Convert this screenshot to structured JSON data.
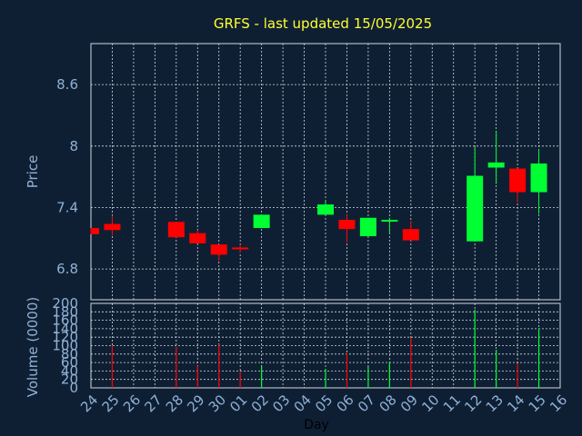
{
  "title": "GRFS - last updated 15/05/2025",
  "colors": {
    "background": "#0f1f33",
    "title": "#ffff33",
    "axis_text": "#8fb1d6",
    "grid": "#d0d8e0",
    "up": "#00ff33",
    "down": "#ff0000"
  },
  "chart_data": [
    {
      "type": "candlestick",
      "ylabel": "Price",
      "ylim": [
        6.5,
        9.0
      ],
      "yticks": [
        6.8,
        7.4,
        8,
        8.6
      ],
      "x_categories": [
        "24",
        "25",
        "26",
        "27",
        "28",
        "29",
        "30",
        "01",
        "02",
        "03",
        "04",
        "05",
        "06",
        "07",
        "08",
        "09",
        "10",
        "11",
        "12",
        "13",
        "14",
        "15",
        "16"
      ],
      "grid": true,
      "candles": [
        {
          "day": "24",
          "open": 7.2,
          "close": 7.14,
          "high": 7.2,
          "low": 7.14
        },
        {
          "day": "25",
          "open": 7.24,
          "close": 7.18,
          "high": 7.32,
          "low": 7.13
        },
        {
          "day": "28",
          "open": 7.26,
          "close": 7.11,
          "high": 7.26,
          "low": 7.11
        },
        {
          "day": "29",
          "open": 7.15,
          "close": 7.05,
          "high": 7.18,
          "low": 7.05
        },
        {
          "day": "30",
          "open": 7.04,
          "close": 6.94,
          "high": 7.04,
          "low": 6.88
        },
        {
          "day": "01",
          "open": 7.01,
          "close": 7.0,
          "high": 7.04,
          "low": 6.96
        },
        {
          "day": "02",
          "open": 7.2,
          "close": 7.33,
          "high": 7.33,
          "low": 7.2
        },
        {
          "day": "05",
          "open": 7.33,
          "close": 7.43,
          "high": 7.47,
          "low": 7.33
        },
        {
          "day": "06",
          "open": 7.28,
          "close": 7.19,
          "high": 7.33,
          "low": 7.06
        },
        {
          "day": "07",
          "open": 7.12,
          "close": 7.3,
          "high": 7.3,
          "low": 7.12
        },
        {
          "day": "08",
          "open": 7.27,
          "close": 7.28,
          "high": 7.3,
          "low": 7.15
        },
        {
          "day": "09",
          "open": 7.19,
          "close": 7.08,
          "high": 7.27,
          "low": 7.08
        },
        {
          "day": "12",
          "open": 7.07,
          "close": 7.71,
          "high": 7.99,
          "low": 7.07
        },
        {
          "day": "13",
          "open": 7.79,
          "close": 7.84,
          "high": 8.15,
          "low": 7.63
        },
        {
          "day": "14",
          "open": 7.78,
          "close": 7.55,
          "high": 7.78,
          "low": 7.45
        },
        {
          "day": "15",
          "open": 7.55,
          "close": 7.83,
          "high": 7.97,
          "low": 7.34
        }
      ]
    },
    {
      "type": "bar",
      "ylabel": "Volume (0000)",
      "xlabel": "Day",
      "ylim": [
        0,
        200
      ],
      "yticks": [
        0,
        20,
        40,
        60,
        80,
        100,
        120,
        140,
        160,
        180,
        200
      ],
      "x_categories": [
        "24",
        "25",
        "26",
        "27",
        "28",
        "29",
        "30",
        "01",
        "02",
        "03",
        "04",
        "05",
        "06",
        "07",
        "08",
        "09",
        "10",
        "11",
        "12",
        "13",
        "14",
        "15",
        "16"
      ],
      "grid": true,
      "bars": [
        {
          "day": "25",
          "value": 100,
          "direction": "down"
        },
        {
          "day": "28",
          "value": 97,
          "direction": "down"
        },
        {
          "day": "29",
          "value": 52,
          "direction": "down"
        },
        {
          "day": "30",
          "value": 103,
          "direction": "down"
        },
        {
          "day": "01",
          "value": 38,
          "direction": "down"
        },
        {
          "day": "02",
          "value": 52,
          "direction": "up"
        },
        {
          "day": "05",
          "value": 45,
          "direction": "up"
        },
        {
          "day": "06",
          "value": 82,
          "direction": "down"
        },
        {
          "day": "07",
          "value": 50,
          "direction": "up"
        },
        {
          "day": "08",
          "value": 62,
          "direction": "up"
        },
        {
          "day": "09",
          "value": 118,
          "direction": "down"
        },
        {
          "day": "12",
          "value": 185,
          "direction": "up"
        },
        {
          "day": "13",
          "value": 90,
          "direction": "up"
        },
        {
          "day": "14",
          "value": 58,
          "direction": "down"
        },
        {
          "day": "15",
          "value": 140,
          "direction": "up"
        }
      ]
    }
  ]
}
